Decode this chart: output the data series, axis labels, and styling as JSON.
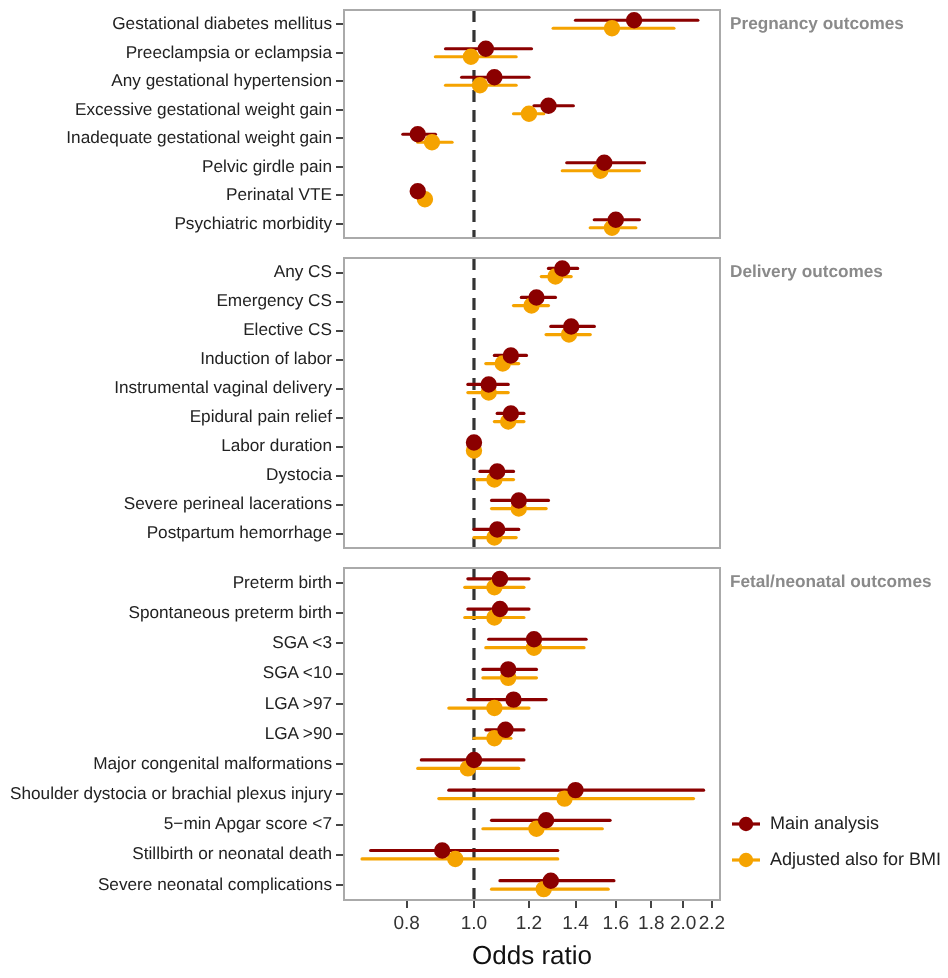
{
  "chart_data": [
    {
      "type": "scatter",
      "annotations": [
        "Pregnancy outcomes"
      ],
      "orientation": "horizontal",
      "log": "x",
      "marker": "circle",
      "tick_labels": "y",
      "categories": [
        "Gestational diabetes mellitus",
        "Preeclampsia or eclampsia",
        "Any gestational hypertension",
        "Excessive gestational weight gain",
        "Inadequate gestational weight gain",
        "Pelvic girdle pain",
        "Perinatal VTE",
        "Psychiatric morbidity"
      ],
      "series": [
        {
          "color": "#8b0000",
          "values": [
            1.7,
            1.04,
            1.07,
            1.28,
            0.83,
            1.54,
            0.83,
            1.6
          ],
          "errors": [
            [
              1.4,
              2.1
            ],
            [
              0.91,
              1.21
            ],
            [
              0.96,
              1.2
            ],
            [
              1.22,
              1.39
            ],
            [
              0.79,
              0.88
            ],
            [
              1.36,
              1.76
            ],
            null,
            [
              1.49,
              1.73
            ]
          ]
        },
        {
          "color": "#f5a300",
          "values": [
            1.58,
            0.99,
            1.02,
            1.2,
            0.87,
            1.52,
            0.85,
            1.58
          ],
          "errors": [
            [
              1.3,
              1.94
            ],
            [
              0.88,
              1.15
            ],
            [
              0.91,
              1.15
            ],
            [
              1.14,
              1.26
            ],
            [
              0.83,
              0.93
            ],
            [
              1.34,
              1.73
            ],
            null,
            [
              1.47,
              1.71
            ]
          ]
        }
      ],
      "xlim": [
        0.65,
        2.26
      ],
      "ref_lines": [
        {
          "axis": "x",
          "value": 1,
          "line_style": "dashed",
          "color": "#333333"
        }
      ]
    },
    {
      "type": "scatter",
      "annotations": [
        "Delivery outcomes"
      ],
      "orientation": "horizontal",
      "log": "x",
      "marker": "circle",
      "tick_labels": "y",
      "categories": [
        "Any CS",
        "Emergency CS",
        "Elective CS",
        "Induction of labor",
        "Instrumental vaginal delivery",
        "Epidural pain relief",
        "Labor duration",
        "Dystocia",
        "Severe perineal lacerations",
        "Postpartum hemorrhage"
      ],
      "series": [
        {
          "color": "#8b0000",
          "values": [
            1.34,
            1.23,
            1.38,
            1.13,
            1.05,
            1.13,
            1.0,
            1.08,
            1.16,
            1.08
          ],
          "errors": [
            [
              1.28,
              1.41
            ],
            [
              1.17,
              1.31
            ],
            [
              1.29,
              1.49
            ],
            [
              1.07,
              1.19
            ],
            [
              0.98,
              1.12
            ],
            [
              1.08,
              1.18
            ],
            null,
            [
              1.02,
              1.14
            ],
            [
              1.06,
              1.28
            ],
            [
              1.0,
              1.16
            ]
          ]
        },
        {
          "color": "#f5a300",
          "values": [
            1.31,
            1.21,
            1.37,
            1.1,
            1.05,
            1.12,
            1.0,
            1.07,
            1.16,
            1.07
          ],
          "errors": [
            [
              1.25,
              1.38
            ],
            [
              1.14,
              1.28
            ],
            [
              1.27,
              1.47
            ],
            [
              1.04,
              1.16
            ],
            [
              0.98,
              1.12
            ],
            [
              1.07,
              1.18
            ],
            null,
            [
              1.01,
              1.14
            ],
            [
              1.06,
              1.27
            ],
            [
              1.0,
              1.15
            ]
          ]
        }
      ],
      "xlim": [
        0.65,
        2.26
      ],
      "ref_lines": [
        {
          "axis": "x",
          "value": 1,
          "line_style": "dashed",
          "color": "#333333"
        }
      ]
    },
    {
      "type": "scatter",
      "annotations": [
        "Fetal/neonatal outcomes"
      ],
      "orientation": "horizontal",
      "log": "x",
      "marker": "circle",
      "xlabel": "Odds ratio",
      "legend": "right",
      "categories": [
        "Preterm birth",
        "Spontaneous preterm birth",
        "SGA <3",
        "SGA <10",
        "LGA >97",
        "LGA >90",
        "Major congenital malformations",
        "Shoulder dystocia or brachial plexus injury",
        "5−min Apgar score <7",
        "Stillbirth or neonatal death",
        "Severe neonatal complications"
      ],
      "series": [
        {
          "name": "Main analysis",
          "color": "#8b0000",
          "values": [
            1.09,
            1.09,
            1.22,
            1.12,
            1.14,
            1.11,
            1.0,
            1.4,
            1.27,
            0.9,
            1.29
          ],
          "errors": [
            [
              0.98,
              1.2
            ],
            [
              0.98,
              1.2
            ],
            [
              1.05,
              1.45
            ],
            [
              1.03,
              1.23
            ],
            [
              0.98,
              1.27
            ],
            [
              1.04,
              1.18
            ],
            [
              0.84,
              1.18
            ],
            [
              0.92,
              2.14
            ],
            [
              1.06,
              1.57
            ],
            [
              0.71,
              1.32
            ],
            [
              1.09,
              1.59
            ]
          ]
        },
        {
          "name": "Adjusted also for BMI",
          "color": "#f5a300",
          "values": [
            1.07,
            1.07,
            1.22,
            1.12,
            1.07,
            1.07,
            0.98,
            1.35,
            1.23,
            0.94,
            1.26
          ],
          "errors": [
            [
              0.97,
              1.18
            ],
            [
              0.97,
              1.18
            ],
            [
              1.04,
              1.44
            ],
            [
              1.03,
              1.23
            ],
            [
              0.92,
              1.2
            ],
            [
              1.0,
              1.13
            ],
            [
              0.83,
              1.16
            ],
            [
              0.89,
              2.07
            ],
            [
              1.03,
              1.53
            ],
            [
              0.69,
              1.32
            ],
            [
              1.06,
              1.56
            ]
          ]
        }
      ],
      "xlim": [
        0.65,
        2.26
      ],
      "xticks": [
        0.8,
        {
          "value": 1,
          "label": "1.0"
        },
        1.2,
        1.4,
        1.6,
        1.8,
        {
          "value": 2,
          "label": "2.0"
        },
        2.2
      ],
      "ref_lines": [
        {
          "axis": "x",
          "value": 1,
          "line_style": "dashed",
          "color": "#333333"
        }
      ]
    }
  ]
}
